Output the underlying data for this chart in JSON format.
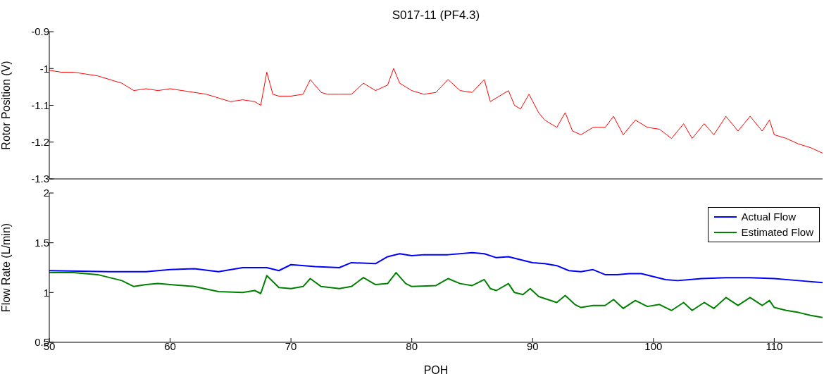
{
  "chart_data": [
    {
      "type": "line",
      "title": "S017-11 (PF4.3)",
      "ylabel": "Rotor Position (V)",
      "xlim": [
        50,
        114
      ],
      "xticks": [
        50,
        60,
        70,
        80,
        90,
        100,
        110
      ],
      "ylim": [
        -1.3,
        -0.9
      ],
      "yticks": [
        -1.3,
        -1.2,
        -1.1,
        -1,
        -0.9
      ],
      "tick_labels": "y",
      "series": [
        {
          "color": "#ff0000",
          "x": [
            50,
            51,
            52,
            53,
            54,
            55,
            56,
            57,
            58,
            59,
            60,
            61,
            62,
            63,
            64,
            65,
            66,
            67,
            67.5,
            68,
            68.5,
            69,
            70,
            71,
            71.6,
            72.5,
            73,
            74,
            75,
            76,
            77,
            78,
            78.5,
            79,
            80,
            81,
            82,
            83,
            84,
            85,
            86,
            86.5,
            87,
            88,
            88.5,
            89,
            89.7,
            90.5,
            91,
            92,
            92.7,
            93.3,
            94,
            95,
            96,
            96.7,
            97.5,
            98.5,
            99.5,
            100.5,
            101.5,
            102.5,
            103.2,
            104.2,
            105,
            106,
            107,
            108,
            109,
            109.6,
            110,
            111,
            112,
            113,
            114
          ],
          "values": [
            -1.005,
            -1.01,
            -1.01,
            -1.015,
            -1.02,
            -1.03,
            -1.04,
            -1.06,
            -1.055,
            -1.06,
            -1.055,
            -1.06,
            -1.065,
            -1.07,
            -1.08,
            -1.09,
            -1.085,
            -1.09,
            -1.1,
            -1.01,
            -1.07,
            -1.075,
            -1.075,
            -1.07,
            -1.03,
            -1.065,
            -1.07,
            -1.07,
            -1.07,
            -1.04,
            -1.06,
            -1.045,
            -1.0,
            -1.04,
            -1.06,
            -1.07,
            -1.065,
            -1.03,
            -1.06,
            -1.065,
            -1.03,
            -1.09,
            -1.08,
            -1.06,
            -1.1,
            -1.11,
            -1.07,
            -1.12,
            -1.14,
            -1.16,
            -1.12,
            -1.17,
            -1.18,
            -1.16,
            -1.16,
            -1.13,
            -1.18,
            -1.14,
            -1.16,
            -1.165,
            -1.19,
            -1.15,
            -1.19,
            -1.15,
            -1.18,
            -1.13,
            -1.17,
            -1.13,
            -1.17,
            -1.14,
            -1.18,
            -1.19,
            -1.205,
            -1.215,
            -1.23
          ]
        }
      ]
    },
    {
      "type": "line",
      "xlabel": "POH",
      "ylabel": "Flow Rate (L/min)",
      "xlim": [
        50,
        114
      ],
      "xticks": [
        50,
        60,
        70,
        80,
        90,
        100,
        110
      ],
      "ylim": [
        0.5,
        2
      ],
      "yticks": [
        0.5,
        1,
        1.5,
        2
      ],
      "legend": "top right",
      "series": [
        {
          "name": "Actual Flow",
          "color": "#0000ff",
          "x": [
            50,
            55,
            58,
            60,
            62,
            64,
            66,
            68,
            69,
            70,
            72,
            74,
            75,
            77,
            78,
            79,
            80,
            81,
            83,
            85,
            86,
            87,
            88,
            89,
            90,
            91,
            92,
            93,
            94,
            95,
            96,
            97,
            98,
            99,
            100,
            101,
            102,
            103,
            104,
            106,
            108,
            110,
            112,
            114
          ],
          "values": [
            1.22,
            1.21,
            1.21,
            1.23,
            1.24,
            1.21,
            1.25,
            1.25,
            1.22,
            1.28,
            1.26,
            1.25,
            1.3,
            1.29,
            1.36,
            1.39,
            1.37,
            1.38,
            1.38,
            1.4,
            1.39,
            1.35,
            1.36,
            1.33,
            1.3,
            1.29,
            1.27,
            1.22,
            1.21,
            1.23,
            1.18,
            1.18,
            1.19,
            1.19,
            1.16,
            1.13,
            1.12,
            1.13,
            1.14,
            1.15,
            1.15,
            1.14,
            1.12,
            1.1
          ]
        },
        {
          "name": "Estimated Flow",
          "color": "#008000",
          "x": [
            50,
            52,
            54,
            56,
            57,
            58,
            59,
            60,
            62,
            64,
            66,
            67,
            67.5,
            68,
            69,
            70,
            71,
            71.6,
            72.5,
            74,
            75,
            76,
            77,
            78,
            78.7,
            79.5,
            80,
            82,
            83,
            84,
            85,
            86,
            86.5,
            87,
            88,
            88.5,
            89.2,
            89.8,
            90.5,
            92,
            92.7,
            93.5,
            94,
            95,
            96,
            96.7,
            97.5,
            98.5,
            99.5,
            100.5,
            101.5,
            102.5,
            103.2,
            104.2,
            105,
            106,
            107,
            108,
            109,
            109.6,
            110,
            111,
            112,
            113,
            114
          ],
          "values": [
            1.2,
            1.2,
            1.18,
            1.12,
            1.06,
            1.08,
            1.09,
            1.08,
            1.06,
            1.01,
            1.0,
            1.02,
            0.99,
            1.17,
            1.05,
            1.04,
            1.06,
            1.14,
            1.06,
            1.04,
            1.06,
            1.15,
            1.08,
            1.09,
            1.2,
            1.09,
            1.06,
            1.07,
            1.14,
            1.09,
            1.07,
            1.13,
            1.04,
            1.02,
            1.09,
            1.0,
            0.98,
            1.04,
            0.96,
            0.9,
            0.97,
            0.88,
            0.85,
            0.87,
            0.87,
            0.93,
            0.84,
            0.92,
            0.86,
            0.88,
            0.82,
            0.9,
            0.82,
            0.9,
            0.84,
            0.95,
            0.87,
            0.95,
            0.87,
            0.92,
            0.85,
            0.82,
            0.8,
            0.77,
            0.75
          ]
        }
      ]
    }
  ]
}
